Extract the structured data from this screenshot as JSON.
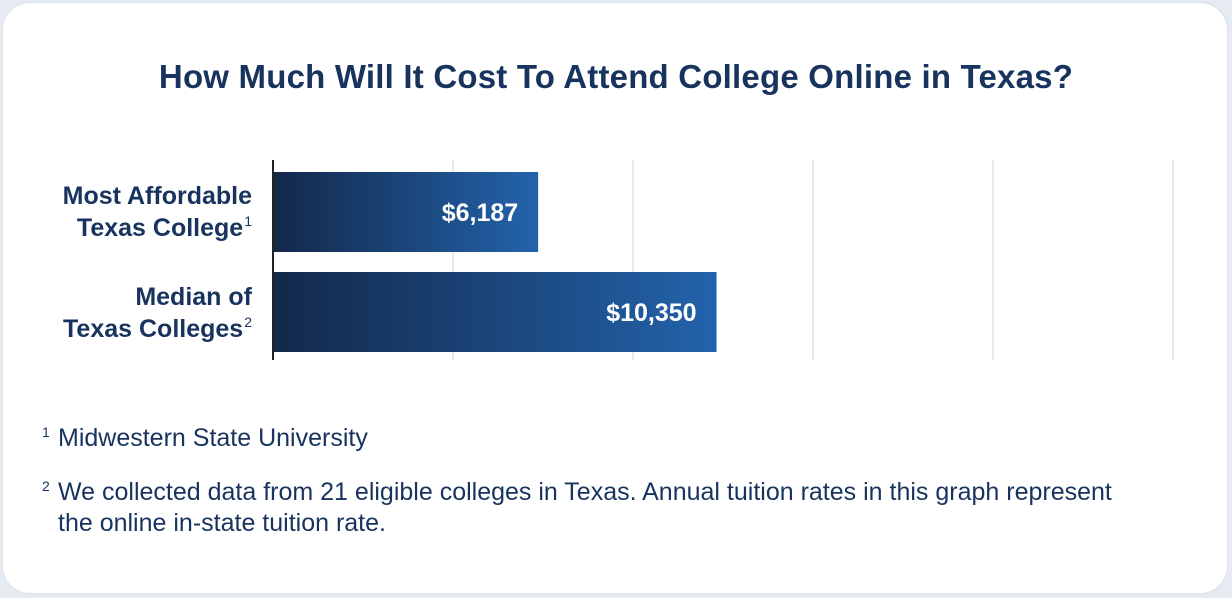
{
  "title": "How Much Will It Cost To Attend College Online in Texas?",
  "colors": {
    "title": "#17335e",
    "bar_start": "#13284a",
    "bar_end": "#2363ab",
    "grid": "#dce4ee",
    "axis": "#222222"
  },
  "chart_data": {
    "type": "bar",
    "orientation": "horizontal",
    "title": "How Much Will It Cost To Attend College Online in Texas?",
    "categories": [
      {
        "line1": "Most Affordable",
        "line2": "Texas College",
        "mark": "1"
      },
      {
        "line1": "Median of",
        "line2": "Texas Colleges",
        "mark": "2"
      }
    ],
    "values": [
      6187,
      10350
    ],
    "value_labels": [
      "$6,187",
      "$10,350"
    ],
    "xlim": [
      0,
      21000
    ],
    "grid": true,
    "xlabel": "",
    "ylabel": ""
  },
  "footnotes": [
    {
      "mark": "1",
      "text": "Midwestern State University"
    },
    {
      "mark": "2",
      "text": "We collected data from 21 eligible colleges in Texas. Annual tuition rates in this graph represent the online in-state tuition rate."
    }
  ]
}
